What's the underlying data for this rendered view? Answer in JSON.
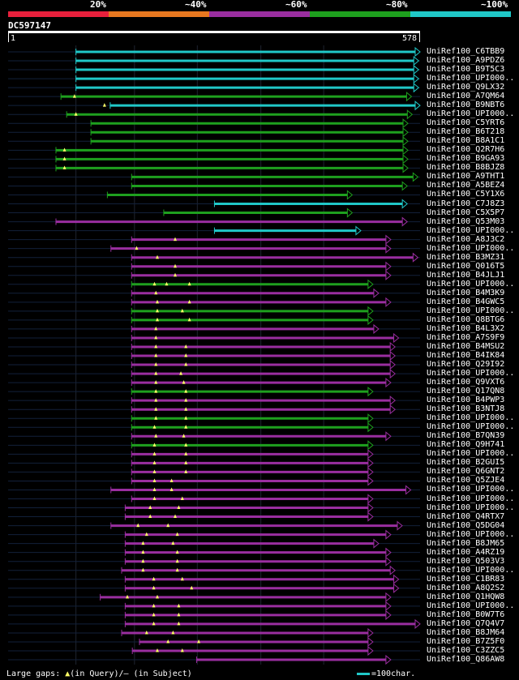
{
  "legend": [
    {
      "label": "20%",
      "color": "#e8203c"
    },
    {
      "label": "~40%",
      "color": "#e87820"
    },
    {
      "label": "~60%",
      "color": "#9a2ea0"
    },
    {
      "label": "~80%",
      "color": "#1ea01e"
    },
    {
      "label": "~100%",
      "color": "#20c8c8"
    }
  ],
  "query": {
    "id": "DC597147",
    "start": "1",
    "end": "578",
    "length": 578
  },
  "hits": [
    {
      "name": "UniRef100_C6TBB9",
      "color": "#20c8c8",
      "start": 96,
      "end": 578,
      "gaps_q": []
    },
    {
      "name": "UniRef100_A9PDZ6",
      "color": "#20c8c8",
      "start": 96,
      "end": 576,
      "gaps_q": []
    },
    {
      "name": "UniRef100_B9T5C3",
      "color": "#20c8c8",
      "start": 96,
      "end": 576,
      "gaps_q": []
    },
    {
      "name": "UniRef100_UPI000..",
      "color": "#20c8c8",
      "start": 96,
      "end": 576,
      "gaps_q": []
    },
    {
      "name": "UniRef100_Q9LX32",
      "color": "#20c8c8",
      "start": 96,
      "end": 576,
      "gaps_q": []
    },
    {
      "name": "UniRef100_A7QM64",
      "color": "#1ea01e",
      "start": 75,
      "end": 566,
      "gaps_q": [
        94
      ]
    },
    {
      "name": "UniRef100_B9NBT6",
      "color": "#20c8c8",
      "start": 144,
      "end": 578,
      "gaps_q": [
        136
      ]
    },
    {
      "name": "UniRef100_UPI000..",
      "color": "#1ea01e",
      "start": 83,
      "end": 567,
      "gaps_q": [
        96
      ]
    },
    {
      "name": "UniRef100_C5YRT6",
      "color": "#1ea01e",
      "start": 117,
      "end": 561,
      "gaps_q": []
    },
    {
      "name": "UniRef100_B6T218",
      "color": "#1ea01e",
      "start": 117,
      "end": 561,
      "gaps_q": []
    },
    {
      "name": "UniRef100_B8A1C1",
      "color": "#1ea01e",
      "start": 117,
      "end": 561,
      "gaps_q": []
    },
    {
      "name": "UniRef100_Q2R7H6",
      "color": "#1ea01e",
      "start": 68,
      "end": 561,
      "gaps_q": [
        80
      ]
    },
    {
      "name": "UniRef100_B9GA93",
      "color": "#1ea01e",
      "start": 68,
      "end": 561,
      "gaps_q": [
        80
      ]
    },
    {
      "name": "UniRef100_B8BJZ8",
      "color": "#1ea01e",
      "start": 68,
      "end": 561,
      "gaps_q": [
        80
      ]
    },
    {
      "name": "UniRef100_A9THT1",
      "color": "#1ea01e",
      "start": 174,
      "end": 575,
      "gaps_q": []
    },
    {
      "name": "UniRef100_A5BEZ4",
      "color": "#1ea01e",
      "start": 174,
      "end": 560,
      "gaps_q": []
    },
    {
      "name": "UniRef100_C5Y1X6",
      "color": "#1ea01e",
      "start": 140,
      "end": 483,
      "gaps_q": []
    },
    {
      "name": "UniRef100_C7J8Z3",
      "color": "#20c8c8",
      "start": 290,
      "end": 560,
      "gaps_q": []
    },
    {
      "name": "UniRef100_C5X5P7",
      "color": "#1ea01e",
      "start": 219,
      "end": 483,
      "gaps_q": []
    },
    {
      "name": "UniRef100_Q53M03",
      "color": "#9a2ea0",
      "start": 68,
      "end": 560,
      "gaps_q": []
    },
    {
      "name": "UniRef100_UPI000..",
      "color": "#20c8c8",
      "start": 290,
      "end": 495,
      "gaps_q": []
    },
    {
      "name": "UniRef100_A8J3C2",
      "color": "#9a2ea0",
      "start": 174,
      "end": 537,
      "gaps_q": [
        235
      ]
    },
    {
      "name": "UniRef100_UPI000..",
      "color": "#9a2ea0",
      "start": 145,
      "end": 537,
      "gaps_q": [
        181
      ]
    },
    {
      "name": "UniRef100_B3MZ31",
      "color": "#9a2ea0",
      "start": 174,
      "end": 575,
      "gaps_q": [
        210
      ]
    },
    {
      "name": "UniRef100_Q016T5",
      "color": "#9a2ea0",
      "start": 174,
      "end": 537,
      "gaps_q": [
        235
      ]
    },
    {
      "name": "UniRef100_B4JLJ1",
      "color": "#9a2ea0",
      "start": 174,
      "end": 537,
      "gaps_q": [
        235
      ]
    },
    {
      "name": "UniRef100_UPI000..",
      "color": "#1ea01e",
      "start": 174,
      "end": 512,
      "gaps_q": [
        206,
        223,
        255
      ]
    },
    {
      "name": "UniRef100_B4M3K9",
      "color": "#9a2ea0",
      "start": 174,
      "end": 520,
      "gaps_q": [
        208
      ]
    },
    {
      "name": "UniRef100_B4GWC5",
      "color": "#9a2ea0",
      "start": 174,
      "end": 537,
      "gaps_q": [
        210,
        255
      ]
    },
    {
      "name": "UniRef100_UPI000..",
      "color": "#1ea01e",
      "start": 174,
      "end": 512,
      "gaps_q": [
        210,
        245
      ]
    },
    {
      "name": "UniRef100_Q8BTG6",
      "color": "#1ea01e",
      "start": 174,
      "end": 512,
      "gaps_q": [
        210,
        255
      ]
    },
    {
      "name": "UniRef100_B4L3X2",
      "color": "#9a2ea0",
      "start": 174,
      "end": 520,
      "gaps_q": [
        208
      ]
    },
    {
      "name": "UniRef100_A7S9F9",
      "color": "#9a2ea0",
      "start": 174,
      "end": 548,
      "gaps_q": [
        208
      ]
    },
    {
      "name": "UniRef100_B4MSU2",
      "color": "#9a2ea0",
      "start": 174,
      "end": 543,
      "gaps_q": [
        208,
        250
      ]
    },
    {
      "name": "UniRef100_B4IK84",
      "color": "#9a2ea0",
      "start": 174,
      "end": 543,
      "gaps_q": [
        208,
        250
      ]
    },
    {
      "name": "UniRef100_Q29I92",
      "color": "#9a2ea0",
      "start": 174,
      "end": 543,
      "gaps_q": [
        208,
        250
      ]
    },
    {
      "name": "UniRef100_UPI000..",
      "color": "#9a2ea0",
      "start": 174,
      "end": 543,
      "gaps_q": [
        208,
        243
      ]
    },
    {
      "name": "UniRef100_Q9VXT6",
      "color": "#9a2ea0",
      "start": 174,
      "end": 537,
      "gaps_q": [
        208,
        247
      ]
    },
    {
      "name": "UniRef100_Q17QN8",
      "color": "#1ea01e",
      "start": 174,
      "end": 512,
      "gaps_q": [
        208,
        250
      ]
    },
    {
      "name": "UniRef100_B4PWP3",
      "color": "#9a2ea0",
      "start": 174,
      "end": 543,
      "gaps_q": [
        208,
        250
      ]
    },
    {
      "name": "UniRef100_B3NTJ8",
      "color": "#9a2ea0",
      "start": 174,
      "end": 543,
      "gaps_q": [
        208,
        250
      ]
    },
    {
      "name": "UniRef100_UPI000..",
      "color": "#1ea01e",
      "start": 174,
      "end": 512,
      "gaps_q": [
        208,
        250
      ]
    },
    {
      "name": "UniRef100_UPI000..",
      "color": "#1ea01e",
      "start": 174,
      "end": 512,
      "gaps_q": [
        206,
        250
      ]
    },
    {
      "name": "UniRef100_B7QN39",
      "color": "#9a2ea0",
      "start": 174,
      "end": 537,
      "gaps_q": [
        208,
        247
      ]
    },
    {
      "name": "UniRef100_Q9H741",
      "color": "#1ea01e",
      "start": 174,
      "end": 512,
      "gaps_q": [
        206,
        250
      ]
    },
    {
      "name": "UniRef100_UPI000..",
      "color": "#9a2ea0",
      "start": 174,
      "end": 512,
      "gaps_q": [
        206,
        250
      ]
    },
    {
      "name": "UniRef100_B2GUI5",
      "color": "#9a2ea0",
      "start": 174,
      "end": 512,
      "gaps_q": [
        206,
        250
      ]
    },
    {
      "name": "UniRef100_Q6GNT2",
      "color": "#9a2ea0",
      "start": 174,
      "end": 512,
      "gaps_q": [
        206,
        250
      ]
    },
    {
      "name": "UniRef100_Q5ZJE4",
      "color": "#9a2ea0",
      "start": 174,
      "end": 512,
      "gaps_q": [
        206,
        230
      ]
    },
    {
      "name": "UniRef100_UPI000..",
      "color": "#9a2ea0",
      "start": 145,
      "end": 565,
      "gaps_q": [
        206,
        230
      ]
    },
    {
      "name": "UniRef100_UPI000..",
      "color": "#9a2ea0",
      "start": 174,
      "end": 512,
      "gaps_q": [
        206,
        245
      ]
    },
    {
      "name": "UniRef100_UPI000..",
      "color": "#9a2ea0",
      "start": 165,
      "end": 512,
      "gaps_q": [
        200,
        240
      ]
    },
    {
      "name": "UniRef100_Q4RTX7",
      "color": "#9a2ea0",
      "start": 165,
      "end": 512,
      "gaps_q": [
        200,
        235
      ]
    },
    {
      "name": "UniRef100_Q5DG04",
      "color": "#9a2ea0",
      "start": 145,
      "end": 553,
      "gaps_q": [
        183,
        225
      ]
    },
    {
      "name": "UniRef100_UPI000..",
      "color": "#9a2ea0",
      "start": 165,
      "end": 537,
      "gaps_q": [
        195,
        238
      ]
    },
    {
      "name": "UniRef100_B8JM65",
      "color": "#9a2ea0",
      "start": 165,
      "end": 520,
      "gaps_q": [
        190,
        232
      ]
    },
    {
      "name": "UniRef100_A4RZ19",
      "color": "#9a2ea0",
      "start": 165,
      "end": 537,
      "gaps_q": [
        190,
        238
      ]
    },
    {
      "name": "UniRef100_Q503V3",
      "color": "#9a2ea0",
      "start": 165,
      "end": 537,
      "gaps_q": [
        190,
        238
      ]
    },
    {
      "name": "UniRef100_UPI000..",
      "color": "#9a2ea0",
      "start": 160,
      "end": 543,
      "gaps_q": [
        190,
        238
      ]
    },
    {
      "name": "UniRef100_C1BR83",
      "color": "#9a2ea0",
      "start": 165,
      "end": 548,
      "gaps_q": [
        205,
        245
      ]
    },
    {
      "name": "UniRef100_A8Q2S2",
      "color": "#9a2ea0",
      "start": 165,
      "end": 548,
      "gaps_q": [
        205,
        258
      ]
    },
    {
      "name": "UniRef100_Q1HQW8",
      "color": "#9a2ea0",
      "start": 130,
      "end": 537,
      "gaps_q": [
        168,
        210
      ]
    },
    {
      "name": "UniRef100_UPI000..",
      "color": "#9a2ea0",
      "start": 165,
      "end": 537,
      "gaps_q": [
        205,
        240
      ]
    },
    {
      "name": "UniRef100_B0W7T6",
      "color": "#9a2ea0",
      "start": 165,
      "end": 537,
      "gaps_q": [
        205,
        240
      ]
    },
    {
      "name": "UniRef100_Q7Q4V7",
      "color": "#9a2ea0",
      "start": 165,
      "end": 578,
      "gaps_q": [
        205,
        240
      ]
    },
    {
      "name": "UniRef100_B8JM64",
      "color": "#9a2ea0",
      "start": 160,
      "end": 512,
      "gaps_q": [
        195,
        232
      ]
    },
    {
      "name": "UniRef100_B7Z5F0",
      "color": "#9a2ea0",
      "start": 185,
      "end": 512,
      "gaps_q": [
        225,
        268
      ]
    },
    {
      "name": "UniRef100_C3ZZC5",
      "color": "#9a2ea0",
      "start": 175,
      "end": 512,
      "gaps_q": [
        210,
        245
      ]
    },
    {
      "name": "UniRef100_Q86AW8",
      "color": "#9a2ea0",
      "start": 265,
      "end": 537,
      "gaps_q": []
    }
  ],
  "footer": {
    "text": "Large gaps: ",
    "query_gap_glyph": "▲",
    "query_gap_text": "(in Query)/",
    "subject_gap_text": "– (in Subject)"
  },
  "scale": {
    "text": "=100char."
  }
}
